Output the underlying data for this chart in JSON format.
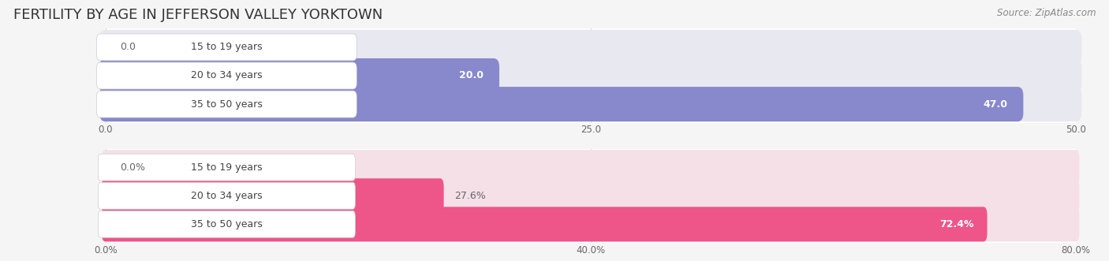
{
  "title": "FERTILITY BY AGE IN JEFFERSON VALLEY YORKTOWN",
  "source": "Source: ZipAtlas.com",
  "top_bars": {
    "categories": [
      "15 to 19 years",
      "20 to 34 years",
      "35 to 50 years"
    ],
    "values": [
      0.0,
      20.0,
      47.0
    ],
    "xlim_max": 50,
    "xticks": [
      0.0,
      25.0,
      50.0
    ],
    "xtick_labels": [
      "0.0",
      "25.0",
      "50.0"
    ],
    "bar_color": "#8888cc",
    "bar_bg_color": "#e8e8f0",
    "value_suffix": ""
  },
  "bottom_bars": {
    "categories": [
      "15 to 19 years",
      "20 to 34 years",
      "35 to 50 years"
    ],
    "values": [
      0.0,
      27.6,
      72.4
    ],
    "xlim_max": 80,
    "xticks": [
      0.0,
      40.0,
      80.0
    ],
    "xtick_labels": [
      "0.0%",
      "40.0%",
      "80.0%"
    ],
    "bar_color": "#ee5588",
    "bar_bg_color": "#f5e0e8",
    "value_suffix": "%"
  },
  "fig_bg_color": "#f5f5f5",
  "panel_bg_color": "#ffffff",
  "title_fontsize": 13,
  "source_fontsize": 8.5,
  "label_fontsize": 9,
  "value_fontsize": 9,
  "tick_fontsize": 8.5,
  "label_box_color": "#ffffff",
  "label_text_color": "#444444",
  "value_text_color_inside": "#ffffff",
  "value_text_color_outside": "#666666",
  "grid_color": "#cccccc"
}
